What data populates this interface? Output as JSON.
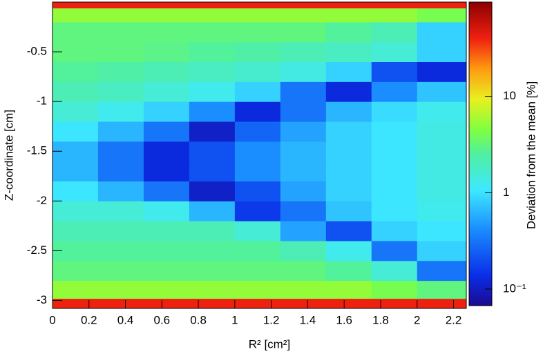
{
  "chart_data": {
    "type": "heatmap",
    "x_label": "R² [cm²]",
    "y_label": "Z-coordinate [cm]",
    "z_label": "Deviation from the mean [%]",
    "xbins": [
      0,
      0.25,
      0.5,
      0.75,
      1,
      1.25,
      1.5,
      1.75,
      2,
      2.27
    ],
    "ybins": [
      -3.08,
      -2.98,
      -2.8,
      -2.6,
      -2.4,
      -2.2,
      -2.0,
      -1.8,
      -1.6,
      -1.4,
      -1.2,
      -1.0,
      -0.8,
      -0.6,
      -0.4,
      -0.2,
      -0.06,
      0
    ],
    "z": [
      [
        40,
        40,
        40,
        40,
        40,
        40,
        40,
        40,
        40
      ],
      [
        5,
        5,
        5,
        5,
        5,
        5,
        5,
        4,
        3
      ],
      [
        3,
        3,
        3,
        3,
        3,
        3,
        2.5,
        1.5,
        0.3
      ],
      [
        2.5,
        2.5,
        2.5,
        2.5,
        2.5,
        2,
        1.2,
        0.3,
        0.8
      ],
      [
        2,
        2,
        2,
        2,
        1.5,
        0.5,
        0.2,
        0.8,
        1
      ],
      [
        1.5,
        1.5,
        1.2,
        0.6,
        0.15,
        0.3,
        0.7,
        1,
        1.2
      ],
      [
        1,
        0.6,
        0.3,
        0.1,
        0.2,
        0.5,
        0.8,
        1,
        1.3
      ],
      [
        0.6,
        0.3,
        0.12,
        0.2,
        0.4,
        0.6,
        0.8,
        1,
        1.3
      ],
      [
        0.6,
        0.3,
        0.12,
        0.2,
        0.4,
        0.6,
        0.8,
        1,
        1.3
      ],
      [
        1,
        0.6,
        0.3,
        0.1,
        0.25,
        0.5,
        0.8,
        1,
        1.3
      ],
      [
        1.5,
        1.2,
        0.8,
        0.4,
        0.12,
        0.3,
        0.6,
        0.9,
        1.2
      ],
      [
        2,
        1.8,
        1.5,
        1.2,
        0.8,
        0.3,
        0.12,
        0.4,
        0.7
      ],
      [
        2.5,
        2.3,
        2,
        1.8,
        1.6,
        1.3,
        0.8,
        0.2,
        0.12
      ],
      [
        3,
        3,
        2.8,
        2.5,
        2.3,
        2,
        1.8,
        1.5,
        0.8
      ],
      [
        3,
        3,
        3,
        3,
        3,
        3,
        2.5,
        2,
        0.8
      ],
      [
        5,
        5,
        5,
        5,
        5,
        5,
        5,
        5,
        4
      ],
      [
        40,
        40,
        40,
        40,
        40,
        40,
        40,
        40,
        40
      ]
    ],
    "xlim": [
      0,
      2.27
    ],
    "ylim": [
      -3.08,
      0
    ],
    "zlim": [
      0.063,
      95
    ],
    "zscale": "log",
    "xticks": [
      0,
      0.2,
      0.4,
      0.6,
      0.8,
      1,
      1.2,
      1.4,
      1.6,
      1.8,
      2,
      2.2
    ],
    "yticks": [
      -3,
      -2.5,
      -2,
      -1.5,
      -1,
      -0.5
    ],
    "zticks": [
      {
        "value": 0.1,
        "label": "10⁻¹"
      },
      1,
      10
    ]
  }
}
